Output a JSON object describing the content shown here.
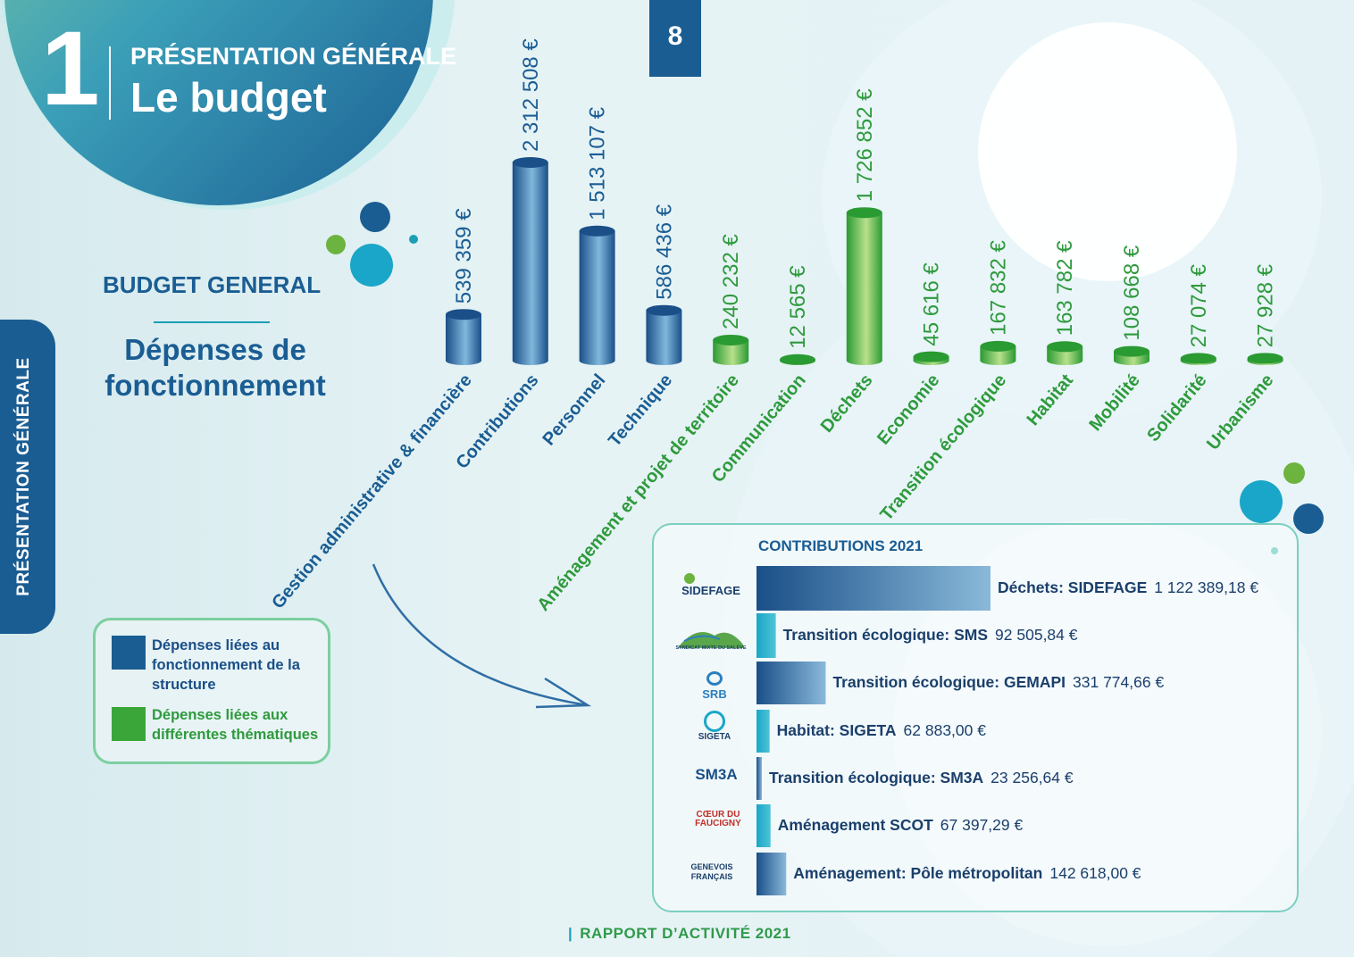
{
  "header": {
    "chapter_number": "1",
    "kicker": "PRÉSENTATION GÉNÉRALE",
    "title": "Le budget",
    "page_number": "8"
  },
  "side_tab": {
    "label": "PRÉSENTATION GÉNÉRALE"
  },
  "section": {
    "heading": "BUDGET GENERAL",
    "subheading": "Dépenses de fonctionnement"
  },
  "legend": {
    "items": [
      {
        "label": "Dépenses liées au fonctionnement de la structure",
        "color": "#1a5d93"
      },
      {
        "label": "Dépenses liées aux différentes thématiques",
        "color": "#3aa63a"
      }
    ]
  },
  "colors": {
    "blue": "#1a5d93",
    "green": "#3aa63a",
    "teal": "#1a9fb5",
    "text_green": "#2e9a3c"
  },
  "chart_data": [
    {
      "type": "bar",
      "title": "Dépenses de fonctionnement",
      "categories": [
        "Gestion administrative & financière",
        "Contributions",
        "Personnel",
        "Technique",
        "Aménagement et projet de territoire",
        "Communication",
        "Déchets",
        "Economie",
        "Transition écologique",
        "Habitat",
        "Mobilité",
        "Solidarité",
        "Urbanisme"
      ],
      "values": [
        539359,
        2312508,
        1513107,
        586436,
        240232,
        12565,
        1726852,
        45616,
        167832,
        163782,
        108668,
        27074,
        27928
      ],
      "value_labels": [
        "539 359 €",
        "2 312 508 €",
        "1 513 107 €",
        "586 436 €",
        "240 232 €",
        "12 565 €",
        "1 726 852 €",
        "45 616 €",
        "167 832 €",
        "163 782 €",
        "108 668 €",
        "27 074 €",
        "27 928 €"
      ],
      "groups": [
        "structure",
        "structure",
        "structure",
        "structure",
        "theme",
        "theme",
        "theme",
        "theme",
        "theme",
        "theme",
        "theme",
        "theme",
        "theme"
      ],
      "ylim": [
        0,
        2312508
      ],
      "grid": false
    },
    {
      "type": "bar",
      "orientation": "horizontal",
      "title": "CONTRIBUTIONS 2021",
      "categories": [
        "Déchets: SIDEFAGE",
        "Transition écologique: SMS",
        "Transition écologique: GEMAPI",
        "Habitat: SIGETA",
        "Transition écologique: SM3A",
        "Aménagement SCOT",
        "Aménagement: Pôle métropolitan"
      ],
      "values": [
        1122389.18,
        92505.84,
        331774.66,
        62883.0,
        23256.64,
        67397.29,
        142618.0
      ],
      "value_labels": [
        "1 122 389,18 €",
        "92 505,84 €",
        "331 774,66 €",
        "62 883,00 €",
        "23 256,64 €",
        "67 397,29 €",
        "142 618,00 €"
      ],
      "bar_styles": [
        "blue",
        "teal",
        "blue",
        "teal",
        "blue",
        "teal",
        "blue"
      ],
      "logos": [
        "SIDEFAGE",
        "SYNDICAT MIXTE DU SALÈVE",
        "SRB",
        "SIGETA",
        "SM3A",
        "CŒUR DU FAUCIGNY",
        "GENEVOIS FRANÇAIS"
      ]
    }
  ],
  "footer": {
    "text": "RAPPORT D’ACTIVITÉ 2021"
  }
}
